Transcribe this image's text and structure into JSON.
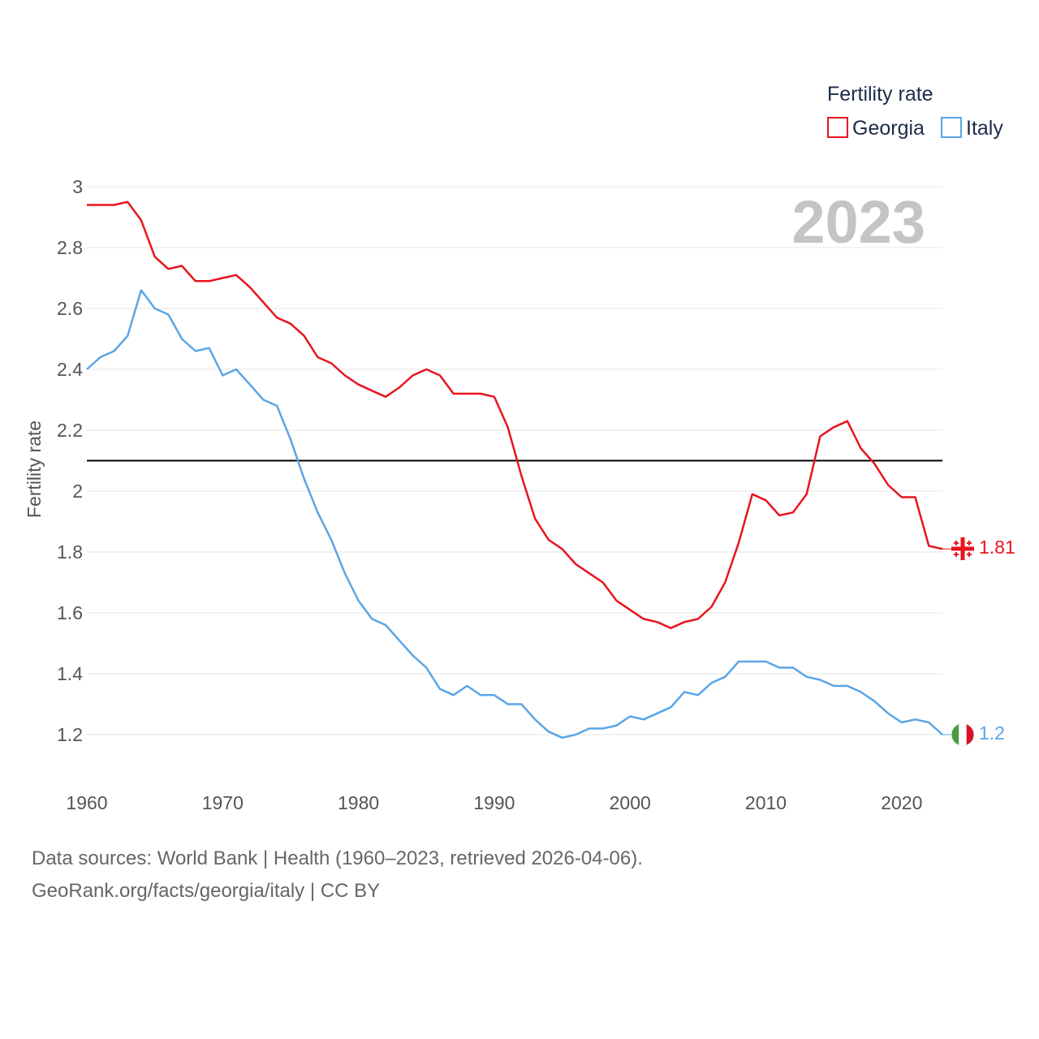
{
  "chart_data": {
    "type": "line",
    "title": "",
    "ylabel": "Fertility rate",
    "xlabel": "",
    "ylim": [
      1.0,
      3.0
    ],
    "xlim": [
      1960,
      2023
    ],
    "y_ticks": [
      1.2,
      1.4,
      1.6,
      1.8,
      2,
      2.2,
      2.4,
      2.6,
      2.8,
      3
    ],
    "y_tick_labels": [
      "1.2",
      "1.4",
      "1.6",
      "1.8",
      "2",
      "2.2",
      "2.4",
      "2.6",
      "2.8",
      "3"
    ],
    "x_ticks": [
      1960,
      1970,
      1980,
      1990,
      2000,
      2010,
      2020
    ],
    "x_tick_labels": [
      "1960",
      "1970",
      "1980",
      "1990",
      "2000",
      "2010",
      "2020"
    ],
    "reference_line": 2.1,
    "year_label": "2023",
    "legend": {
      "title": "Fertility rate",
      "position": "top-right"
    },
    "x": [
      1960,
      1961,
      1962,
      1963,
      1964,
      1965,
      1966,
      1967,
      1968,
      1969,
      1970,
      1971,
      1972,
      1973,
      1974,
      1975,
      1976,
      1977,
      1978,
      1979,
      1980,
      1981,
      1982,
      1983,
      1984,
      1985,
      1986,
      1987,
      1988,
      1989,
      1990,
      1991,
      1992,
      1993,
      1994,
      1995,
      1996,
      1997,
      1998,
      1999,
      2000,
      2001,
      2002,
      2003,
      2004,
      2005,
      2006,
      2007,
      2008,
      2009,
      2010,
      2011,
      2012,
      2013,
      2014,
      2015,
      2016,
      2017,
      2018,
      2019,
      2020,
      2021,
      2022,
      2023
    ],
    "series": [
      {
        "name": "Georgia",
        "color": "#e8141e",
        "end_label": "1.81",
        "values": [
          2.94,
          2.94,
          2.94,
          2.95,
          2.89,
          2.77,
          2.73,
          2.74,
          2.69,
          2.69,
          2.7,
          2.71,
          2.67,
          2.62,
          2.57,
          2.55,
          2.51,
          2.44,
          2.42,
          2.38,
          2.35,
          2.33,
          2.31,
          2.34,
          2.38,
          2.4,
          2.38,
          2.32,
          2.32,
          2.32,
          2.31,
          2.21,
          2.05,
          1.91,
          1.84,
          1.81,
          1.76,
          1.73,
          1.7,
          1.64,
          1.61,
          1.58,
          1.57,
          1.55,
          1.57,
          1.58,
          1.62,
          1.7,
          1.83,
          1.99,
          1.97,
          1.92,
          1.93,
          1.99,
          2.18,
          2.21,
          2.23,
          2.14,
          2.09,
          2.02,
          1.98,
          1.98,
          1.82,
          1.81
        ]
      },
      {
        "name": "Italy",
        "color": "#5aa5e6",
        "end_label": "1.2",
        "values": [
          2.4,
          2.44,
          2.46,
          2.51,
          2.66,
          2.6,
          2.58,
          2.5,
          2.46,
          2.47,
          2.38,
          2.4,
          2.35,
          2.3,
          2.28,
          2.17,
          2.04,
          1.93,
          1.84,
          1.73,
          1.64,
          1.58,
          1.56,
          1.51,
          1.46,
          1.42,
          1.35,
          1.33,
          1.36,
          1.33,
          1.33,
          1.3,
          1.3,
          1.25,
          1.21,
          1.19,
          1.2,
          1.22,
          1.22,
          1.23,
          1.26,
          1.25,
          1.27,
          1.29,
          1.34,
          1.33,
          1.37,
          1.39,
          1.44,
          1.44,
          1.44,
          1.42,
          1.42,
          1.39,
          1.38,
          1.36,
          1.36,
          1.34,
          1.31,
          1.27,
          1.24,
          1.25,
          1.24,
          1.2
        ]
      }
    ]
  },
  "footer": {
    "line1": "Data sources: World Bank | Health (1960–2023, retrieved 2026-04-06).",
    "line2": "GeoRank.org/facts/georgia/italy | CC BY"
  }
}
